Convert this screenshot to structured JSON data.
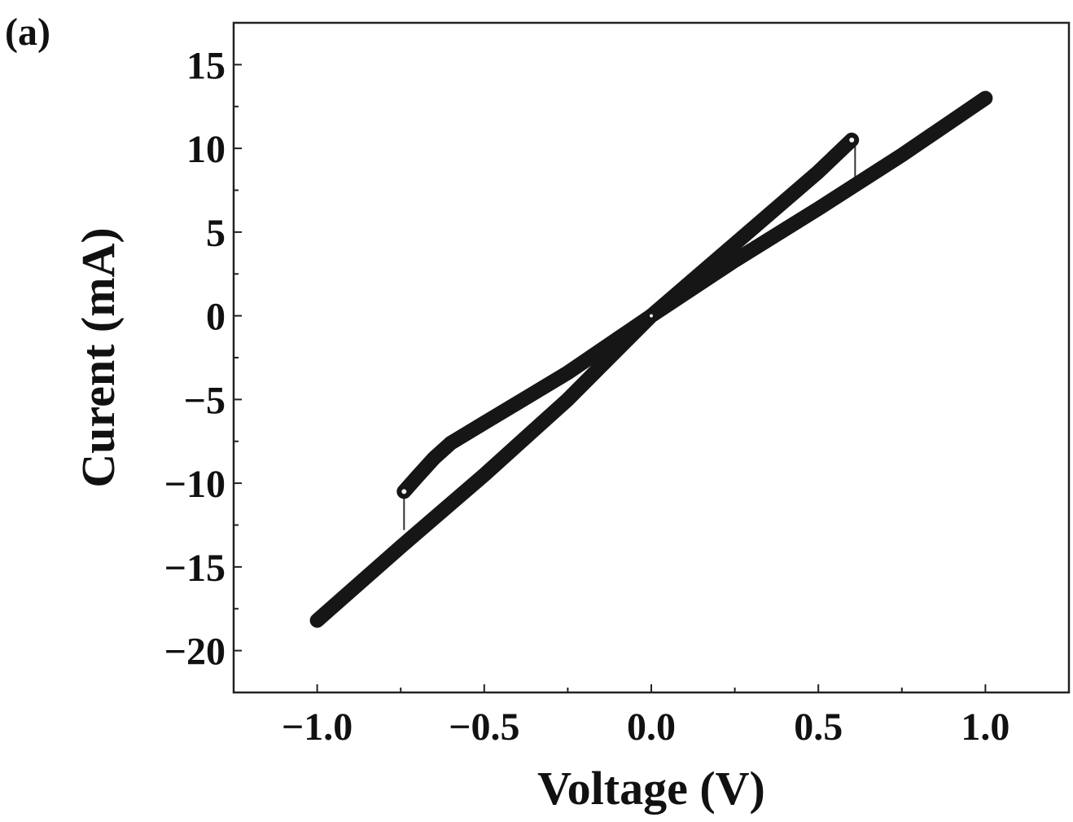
{
  "panel_label": "(a)",
  "chart_data": {
    "type": "line",
    "title": "",
    "xlabel": "Voltage (V)",
    "ylabel": "Curent (mA)",
    "xlim": [
      -1.25,
      1.25
    ],
    "ylim": [
      -22.5,
      17.5
    ],
    "xticks": [
      -1.0,
      -0.5,
      0.0,
      0.5,
      1.0
    ],
    "xtick_labels": [
      "−1.0",
      "−0.5",
      "0.0",
      "0.5",
      "1.0"
    ],
    "yticks": [
      15,
      10,
      5,
      0,
      -5,
      -10,
      -15,
      -20
    ],
    "ytick_labels": [
      "15",
      "10",
      "5",
      "0",
      "−5",
      "−10",
      "−15",
      "−20"
    ],
    "grid": false,
    "legend": false,
    "colors": {
      "trace": "#161616",
      "frame": "#222222"
    },
    "series": [
      {
        "x": [
          -1.0,
          -0.75,
          -0.5,
          -0.25,
          0.0,
          0.25,
          0.5,
          0.75,
          1.0
        ],
        "y": [
          -18.2,
          -13.8,
          -9.5,
          -5.0,
          0.0,
          3.3,
          6.4,
          9.6,
          13.0
        ]
      },
      {
        "x": [
          -0.74,
          -0.7,
          -0.65,
          -0.6,
          -0.5,
          -0.25,
          0.0,
          0.25,
          0.5,
          0.6
        ],
        "y": [
          -10.5,
          -9.6,
          -8.5,
          -7.6,
          -6.4,
          -3.4,
          0.0,
          4.3,
          8.6,
          10.5
        ]
      }
    ],
    "transitions": [
      {
        "x": -0.74,
        "y_from": -10.5,
        "y_to": -12.8
      },
      {
        "x": 0.61,
        "y_from": 10.5,
        "y_to": 8.0
      }
    ]
  }
}
